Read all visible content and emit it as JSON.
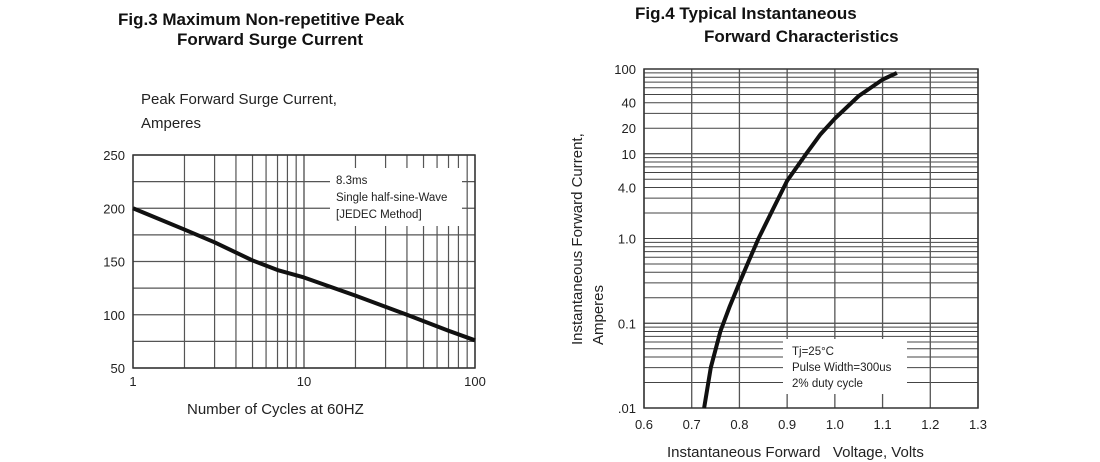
{
  "chart_data": [
    {
      "type": "line",
      "title_line1": "Fig.3 Maximum Non-repetitive Peak",
      "title_line2": "Forward Surge Current",
      "ylabel_line1": "Peak Forward Surge Current,",
      "ylabel_line2": "Amperes",
      "xlabel": "Number of Cycles at 60HZ",
      "xscale": "log",
      "xlim": [
        1,
        100
      ],
      "ylim": [
        50,
        250
      ],
      "xticks": [
        1,
        10,
        100
      ],
      "xtick_labels": [
        "1",
        "10",
        "100"
      ],
      "yticks": [
        50,
        100,
        150,
        200,
        250
      ],
      "ytick_labels": [
        "50",
        "100",
        "150",
        "200",
        "250"
      ],
      "grid": true,
      "annotation": [
        "8.3ms",
        "Single half-sine-Wave",
        "[JEDEC Method]"
      ],
      "series": [
        {
          "name": "Peak Forward Surge Current",
          "x": [
            1,
            2,
            3,
            5,
            7,
            10,
            20,
            40,
            70,
            100
          ],
          "y": [
            200,
            180,
            168,
            151,
            142,
            135,
            118,
            100,
            85,
            76
          ]
        }
      ]
    },
    {
      "type": "line",
      "title_line1": "Fig.4 Typical Instantaneous",
      "title_line2": "Forward Characteristics",
      "ylabel_line1": "Instantaneous Forward Current,",
      "ylabel_line2": "Amperes",
      "xlabel": "Instantaneous Forward   Voltage, Volts",
      "yscale": "log",
      "xlim": [
        0.6,
        1.3
      ],
      "ylim": [
        0.01,
        100
      ],
      "xticks": [
        0.6,
        0.7,
        0.8,
        0.9,
        1.0,
        1.1,
        1.2,
        1.3
      ],
      "xtick_labels": [
        "0.6",
        "0.7",
        "0.8",
        "0.9",
        "1.0",
        "1.1",
        "1.2",
        "1.3"
      ],
      "yticks": [
        0.01,
        0.1,
        1,
        4,
        10,
        20,
        40,
        100
      ],
      "ytick_labels": [
        ".01",
        "0.1",
        "1.0",
        "4.0",
        "10",
        "20",
        "40",
        "100"
      ],
      "grid": true,
      "annotation": [
        "Tj=25°C",
        "Pulse Width=300us",
        "2% duty cycle"
      ],
      "series": [
        {
          "name": "Forward Current",
          "x": [
            0.726,
            0.74,
            0.76,
            0.78,
            0.8,
            0.82,
            0.84,
            0.87,
            0.9,
            0.94,
            0.97,
            1.0,
            1.05,
            1.1,
            1.13
          ],
          "y": [
            0.01,
            0.03,
            0.08,
            0.16,
            0.3,
            0.55,
            1.0,
            2.2,
            4.8,
            10,
            17,
            26,
            48,
            75,
            90
          ]
        }
      ]
    }
  ]
}
